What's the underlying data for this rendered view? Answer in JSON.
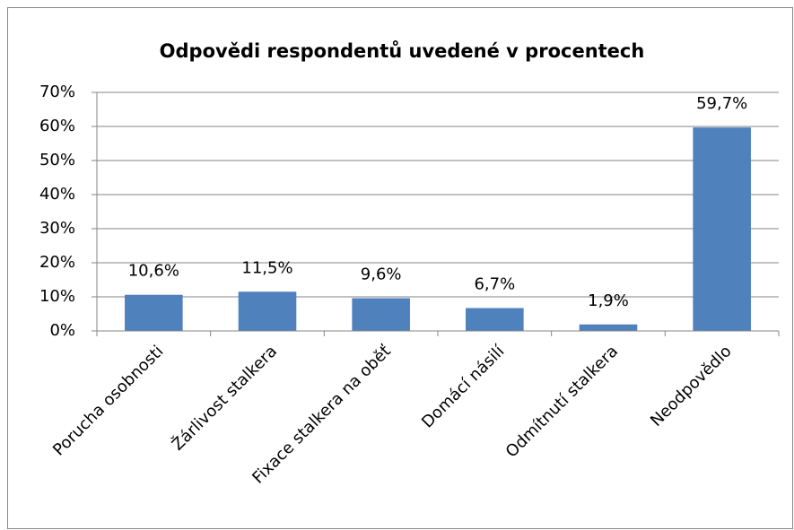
{
  "chart_data": {
    "type": "bar",
    "title": "Odpovědi respondentů uvedené v procentech",
    "categories": [
      "Porucha osobnosti",
      "Žárlivost stalkera",
      "Fixace stalkera na oběť",
      "Domácí násilí",
      "Odmítnutí stalkera",
      "Neodpovědlo"
    ],
    "values": [
      10.6,
      11.5,
      9.6,
      6.7,
      1.9,
      59.7
    ],
    "value_labels": [
      "10,6%",
      "11,5%",
      "9,6%",
      "6,7%",
      "1,9%",
      "59,7%"
    ],
    "color": "#4f81bd",
    "ylim": [
      0,
      70
    ],
    "yticks": [
      {
        "value": 0,
        "label": "0%"
      },
      {
        "value": 10,
        "label": "10%"
      },
      {
        "value": 20,
        "label": "20%"
      },
      {
        "value": 30,
        "label": "30%"
      },
      {
        "value": 40,
        "label": "40%"
      },
      {
        "value": 50,
        "label": "50%"
      },
      {
        "value": 60,
        "label": "60%"
      },
      {
        "value": 70,
        "label": "70%"
      }
    ],
    "grid": true
  }
}
